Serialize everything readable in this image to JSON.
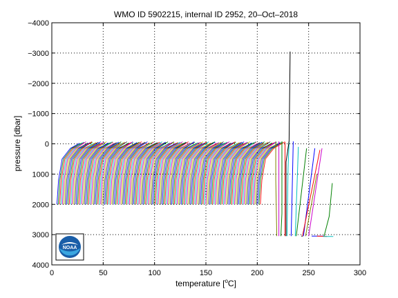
{
  "chart_data": {
    "type": "line",
    "title": "WMO ID 5902215, internal ID 2952, 20–Oct–2018",
    "xlabel_main": "temperature [",
    "xlabel_sup": "o",
    "xlabel_end": "C]",
    "ylabel": "pressure [dbar]",
    "xlim": [
      0,
      300
    ],
    "ylim": [
      4000,
      -4000
    ],
    "y_reversed": true,
    "grid": true,
    "x_ticks": [
      0,
      50,
      100,
      150,
      200,
      250,
      300
    ],
    "y_ticks": [
      -4000,
      -3000,
      -2000,
      -1000,
      0,
      1000,
      2000,
      3000,
      4000
    ],
    "x_tick_labels": [
      "0",
      "50",
      "100",
      "150",
      "200",
      "250",
      "300"
    ],
    "y_tick_labels": [
      "−4000",
      "−3000",
      "−2000",
      "−1000",
      "0",
      "1000",
      "2000",
      "3000",
      "4000"
    ],
    "profile_bundle": {
      "count": 150,
      "first_offset": 5,
      "last_offset": 203,
      "surface_pressure": -20,
      "mixed_pressure": 150,
      "bottom_pressure": 2000,
      "surface_temperature_gain": 22,
      "mixed_temperature_gain": 13
    },
    "outlier_series": [
      {
        "color": "#7f7f00",
        "x": [
          218,
          218,
          219
        ],
        "y": [
          -80,
          1200,
          3050
        ]
      },
      {
        "color": "#cc00cc",
        "x": [
          221,
          221
        ],
        "y": [
          -80,
          3050
        ]
      },
      {
        "color": "#008000",
        "x": [
          224,
          224,
          223
        ],
        "y": [
          -80,
          2300,
          3050
        ]
      },
      {
        "color": "#ff0000",
        "x": [
          227,
          227
        ],
        "y": [
          -50,
          3050
        ]
      },
      {
        "color": "#00bfbf",
        "x": [
          231,
          230,
          229
        ],
        "y": [
          -80,
          800,
          3050
        ]
      },
      {
        "color": "#000000",
        "x": [
          232,
          231,
          228,
          228
        ],
        "y": [
          -3050,
          -100,
          600,
          3050
        ]
      },
      {
        "color": "#0000ff",
        "x": [
          235,
          234,
          233
        ],
        "y": [
          -80,
          1500,
          3050
        ]
      },
      {
        "color": "#00bfbf",
        "x": [
          240,
          237
        ],
        "y": [
          100,
          3050
        ]
      },
      {
        "color": "#007f00",
        "x": [
          248,
          238
        ],
        "y": [
          150,
          3050
        ]
      },
      {
        "color": "#0000ff",
        "x": [
          256,
          245
        ],
        "y": [
          150,
          3050
        ]
      },
      {
        "color": "#ff0000",
        "x": [
          261,
          244
        ],
        "y": [
          200,
          3050
        ]
      },
      {
        "color": "#cc00cc",
        "x": [
          263,
          250
        ],
        "y": [
          150,
          3050
        ]
      },
      {
        "color": "#7f7f00",
        "x": [
          258,
          247
        ],
        "y": [
          1000,
          3050
        ]
      },
      {
        "color": "#008000",
        "x": [
          273,
          270,
          265
        ],
        "y": [
          1300,
          2400,
          3050
        ]
      },
      {
        "color": "#0000ff",
        "x": [
          253,
          265
        ],
        "y": [
          3050,
          3050
        ]
      },
      {
        "color": "#ff0000",
        "x": [
          258,
          268
        ],
        "y": [
          3050,
          3060
        ]
      },
      {
        "color": "#00bfbf",
        "x": [
          264,
          274
        ],
        "y": [
          3060,
          3060
        ]
      },
      {
        "color": "#000000",
        "x": [
          243,
          244
        ],
        "y": [
          3040,
          3060
        ]
      }
    ],
    "series_colors": [
      "#0000ff",
      "#008000",
      "#ff0000",
      "#00bfbf",
      "#bf00bf",
      "#bfbf00",
      "#3f3f3f"
    ]
  },
  "logo": {
    "text": "NOAA",
    "icon": "noaa-logo"
  }
}
